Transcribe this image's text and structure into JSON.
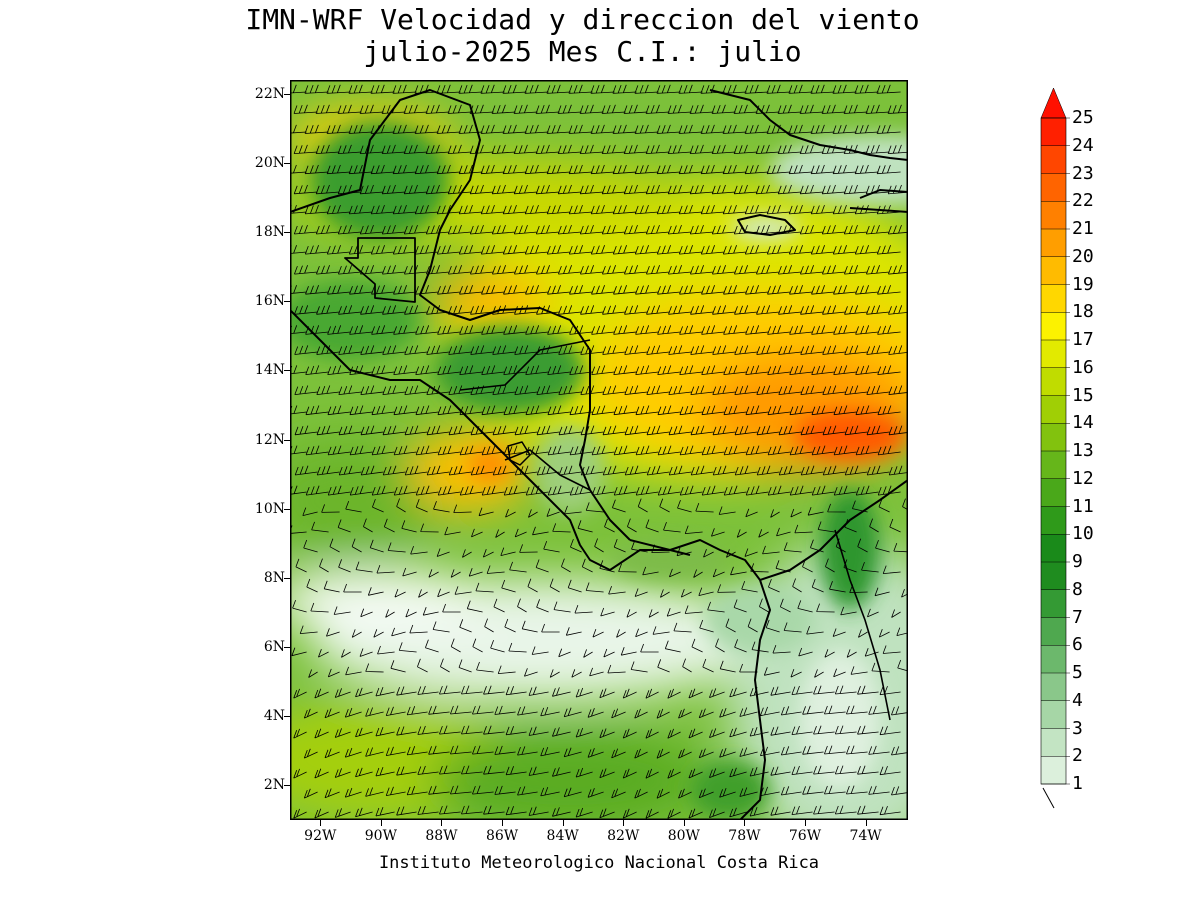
{
  "title": {
    "line1": "IMN-WRF Velocidad y direccion del viento",
    "line2": "julio-2025 Mes C.I.: julio"
  },
  "credit": "Instituto Meteorologico Nacional Costa Rica",
  "axes": {
    "lat_labels": [
      "2N",
      "4N",
      "6N",
      "8N",
      "10N",
      "12N",
      "14N",
      "16N",
      "18N",
      "20N",
      "22N"
    ],
    "lat_values": [
      2,
      4,
      6,
      8,
      10,
      12,
      14,
      16,
      18,
      20,
      22
    ],
    "lon_labels": [
      "92W",
      "90W",
      "88W",
      "86W",
      "84W",
      "82W",
      "80W",
      "78W",
      "76W",
      "74W"
    ],
    "lon_values": [
      -92,
      -90,
      -88,
      -86,
      -84,
      -82,
      -80,
      -78,
      -76,
      -74
    ],
    "lat_range": [
      1.0,
      22.4
    ],
    "lon_range": [
      -93.0,
      -72.6
    ]
  },
  "colorbar": {
    "levels": [
      "1",
      "2",
      "3",
      "4",
      "5",
      "6",
      "7",
      "8",
      "9",
      "10",
      "11",
      "12",
      "13",
      "14",
      "15",
      "16",
      "17",
      "18",
      "19",
      "20",
      "21",
      "22",
      "23",
      "24",
      "25"
    ],
    "colors": [
      "#f0faf0",
      "#dcf0dc",
      "#c3e4c3",
      "#a6d6a6",
      "#8ac78a",
      "#6cb86c",
      "#4fa84f",
      "#349a34",
      "#1f8c1f",
      "#1a8a1a",
      "#2f9a1a",
      "#4aa81a",
      "#66b61a",
      "#82c20e",
      "#a0cf05",
      "#c0dc00",
      "#e2ea00",
      "#fcf200",
      "#ffd700",
      "#ffbb00",
      "#ff9e00",
      "#ff8000",
      "#ff6400",
      "#ff4600",
      "#ff2000"
    ],
    "arrow_color": "#ff1000",
    "units_symbol": "wind barb"
  },
  "land_color": "legend",
  "ocean_field_note_hidden": ""
}
